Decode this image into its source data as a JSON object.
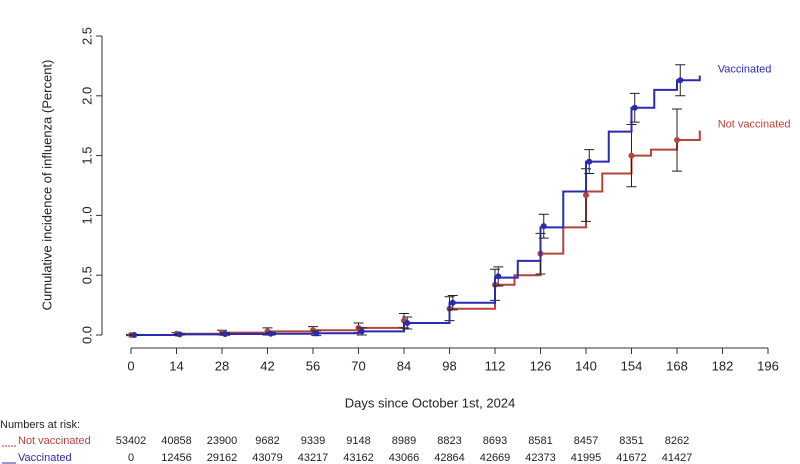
{
  "chart_data": {
    "type": "step",
    "xlabel": "Days since October 1st, 2024",
    "ylabel": "Cumulative incidence of influenza (Percent)",
    "xlim": [
      0,
      196
    ],
    "ylim": [
      0,
      2.5
    ],
    "xticks": [
      0,
      14,
      28,
      42,
      56,
      70,
      84,
      98,
      112,
      126,
      140,
      154,
      168,
      182,
      196
    ],
    "yticks": [
      {
        "value": 0,
        "label": "0.0"
      },
      0.5,
      {
        "value": 1,
        "label": "1.0"
      },
      1.5,
      {
        "value": 2,
        "label": "2.0"
      },
      2.5
    ],
    "series": [
      {
        "name": "Not vaccinated",
        "color": "#b5443a",
        "x": [
          0,
          14,
          28,
          42,
          56,
          70,
          84,
          98,
          112,
          118,
          126,
          133,
          140,
          145,
          154,
          160,
          168,
          175
        ],
        "values": [
          0,
          0.01,
          0.02,
          0.03,
          0.04,
          0.06,
          0.1,
          0.22,
          0.42,
          0.5,
          0.68,
          0.9,
          1.2,
          1.35,
          1.5,
          1.55,
          1.63,
          1.71
        ],
        "points": {
          "x": [
            0,
            14,
            28,
            42,
            56,
            70,
            84,
            98,
            112,
            126,
            140,
            154,
            168
          ],
          "values": [
            0,
            0.01,
            0.02,
            0.03,
            0.04,
            0.06,
            0.12,
            0.22,
            0.42,
            0.68,
            1.17,
            1.5,
            1.63
          ],
          "errors": [
            0.005,
            0.01,
            0.02,
            0.03,
            0.03,
            0.04,
            0.06,
            0.1,
            0.13,
            0.17,
            0.22,
            0.26,
            0.26
          ]
        }
      },
      {
        "name": "Vaccinated",
        "color": "#2b2bb0",
        "x": [
          0,
          14,
          28,
          42,
          56,
          70,
          84,
          98,
          112,
          119,
          126,
          133,
          140,
          147,
          154,
          161,
          168,
          175
        ],
        "values": [
          0,
          0.005,
          0.008,
          0.01,
          0.015,
          0.03,
          0.1,
          0.27,
          0.48,
          0.62,
          0.9,
          1.2,
          1.45,
          1.7,
          1.9,
          2.05,
          2.13,
          2.17
        ],
        "points": {
          "x": [
            1,
            15,
            29,
            43,
            57,
            71,
            85,
            99,
            113,
            127,
            141,
            155,
            169
          ],
          "values": [
            0,
            0.005,
            0.008,
            0.01,
            0.015,
            0.03,
            0.1,
            0.27,
            0.49,
            0.91,
            1.45,
            1.9,
            2.13
          ],
          "errors": [
            0.003,
            0.005,
            0.01,
            0.01,
            0.02,
            0.03,
            0.05,
            0.06,
            0.08,
            0.1,
            0.1,
            0.12,
            0.13
          ]
        }
      }
    ],
    "risk_table": {
      "title": "Numbers at risk:",
      "rows": [
        [
          53402,
          40858,
          23900,
          9682,
          9339,
          9148,
          8989,
          8823,
          8693,
          8581,
          8457,
          8351,
          8262
        ],
        [
          0,
          12456,
          29162,
          43079,
          43217,
          43162,
          43066,
          42864,
          42669,
          42373,
          41995,
          41672,
          41427
        ]
      ]
    }
  }
}
